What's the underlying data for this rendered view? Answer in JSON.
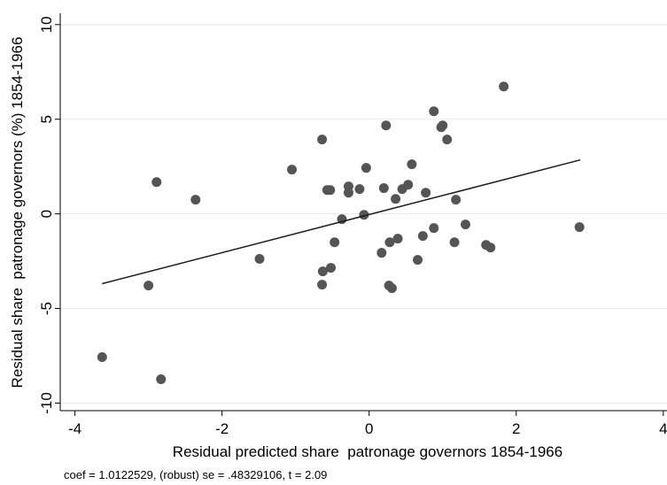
{
  "chart_data": {
    "type": "scatter",
    "x_label": "Residual predicted share  patronage governors 1854-1966",
    "y_label": "Residual share  patronage governors (%) 1854-1966",
    "note": "coef = 1.0122529, (robust) se = .48329106, t = 2.09",
    "xlim": [
      -4.2,
      4.05
    ],
    "ylim": [
      -10.4,
      10.6
    ],
    "xticks": [
      -4,
      -2,
      0,
      2,
      4
    ],
    "yticks": [
      -10,
      -5,
      0,
      5,
      10
    ],
    "grid": true,
    "series": [
      {
        "color": "#555555",
        "x": [
          -3.63,
          -2.83,
          -3.0,
          -2.89,
          -2.36,
          -1.49,
          -1.05,
          -0.64,
          -0.63,
          -0.64,
          -0.52,
          -0.57,
          -0.53,
          -0.47,
          -0.37,
          -0.28,
          -0.28,
          -0.13,
          -0.04,
          -0.07,
          0.17,
          0.2,
          0.23,
          0.27,
          0.31,
          0.28,
          0.36,
          0.39,
          0.45,
          0.53,
          0.58,
          0.66,
          0.73,
          0.77,
          0.88,
          0.88,
          0.98,
          1.0,
          1.06,
          1.16,
          1.18,
          1.31,
          1.59,
          1.65,
          1.83,
          2.86
        ],
        "values": [
          -7.57,
          -8.74,
          -3.79,
          1.68,
          0.75,
          -2.38,
          2.34,
          3.93,
          -3.04,
          -3.74,
          -2.85,
          1.26,
          1.26,
          -1.5,
          -0.28,
          1.45,
          1.12,
          1.31,
          2.43,
          -0.05,
          -2.06,
          1.36,
          4.67,
          -3.79,
          -3.93,
          -1.5,
          0.79,
          -1.31,
          1.31,
          1.54,
          2.62,
          -2.43,
          -1.17,
          1.12,
          -0.75,
          5.42,
          4.58,
          4.67,
          3.93,
          -1.5,
          0.75,
          -0.56,
          -1.64,
          -1.78,
          6.73,
          -0.7
        ]
      }
    ],
    "fit": {
      "color": "#1a1a1a",
      "x": [
        -3.63,
        2.87
      ],
      "values": [
        -3.69,
        2.85
      ]
    }
  }
}
